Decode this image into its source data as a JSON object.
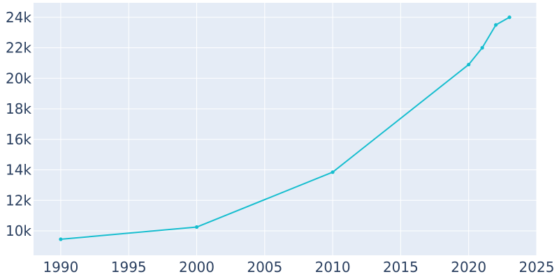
{
  "chart_data": {
    "type": "line",
    "title": "",
    "xlabel": "",
    "ylabel": "",
    "xlim": [
      1988,
      2025
    ],
    "ylim": [
      8400,
      24950
    ],
    "x_ticks": [
      1990,
      1995,
      2000,
      2005,
      2010,
      2015,
      2020,
      2025
    ],
    "x_tick_labels": [
      "1990",
      "1995",
      "2000",
      "2005",
      "2010",
      "2015",
      "2020",
      "2025"
    ],
    "y_ticks": [
      10000,
      12000,
      14000,
      16000,
      18000,
      20000,
      22000,
      24000
    ],
    "y_tick_labels": [
      "10k",
      "12k",
      "14k",
      "16k",
      "18k",
      "20k",
      "22k",
      "24k"
    ],
    "grid": true,
    "series": [
      {
        "color": "#17becf",
        "x": [
          1990,
          2000,
          2010,
          2020,
          2021,
          2022,
          2023
        ],
        "y": [
          9450,
          10250,
          13850,
          20900,
          22000,
          23500,
          24000
        ]
      }
    ],
    "colors": {
      "plot_background": "#e5ecf6",
      "grid": "#ffffff",
      "text": "#2a3f5f"
    }
  }
}
